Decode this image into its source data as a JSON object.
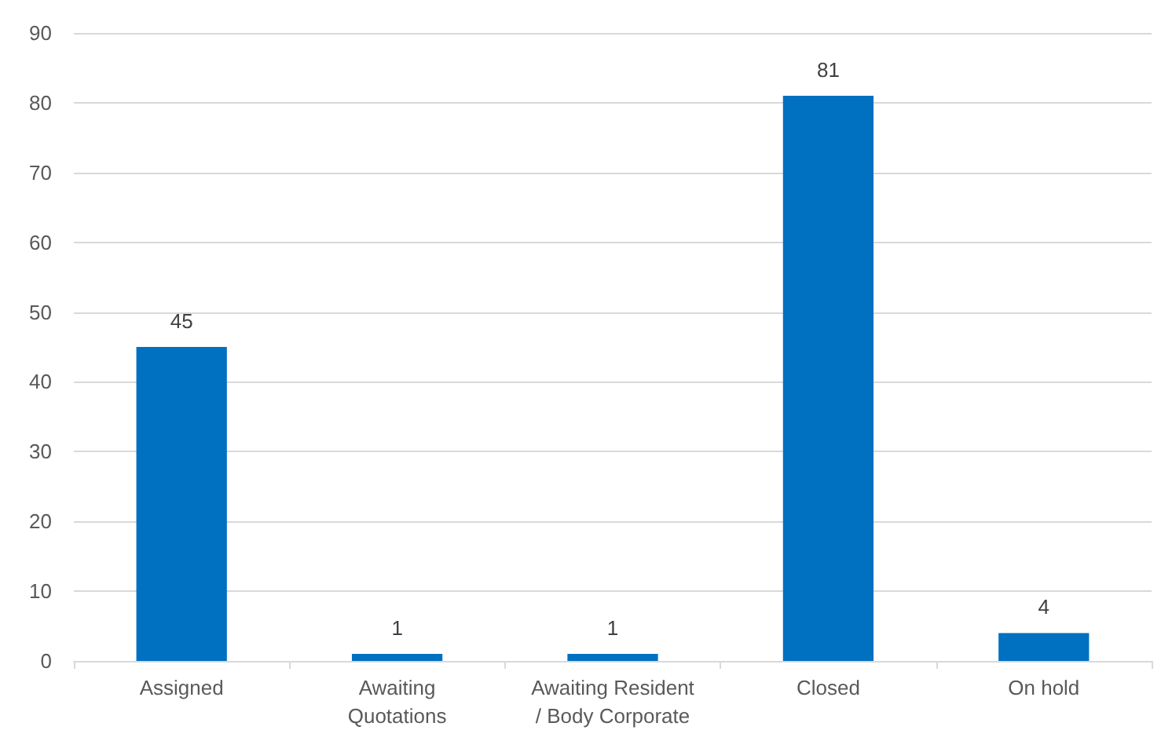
{
  "chart_data": {
    "type": "bar",
    "categories": [
      "Assigned",
      "Awaiting\nQuotations",
      "Awaiting Resident\n/ Body Corporate",
      "Closed",
      "On hold"
    ],
    "values": [
      45,
      1,
      1,
      81,
      4
    ],
    "color": "#0070c0",
    "ylim": [
      0,
      90
    ],
    "yticks": [
      0,
      10,
      20,
      30,
      40,
      50,
      60,
      70,
      80,
      90
    ],
    "grid": "y",
    "data_labels": true
  }
}
